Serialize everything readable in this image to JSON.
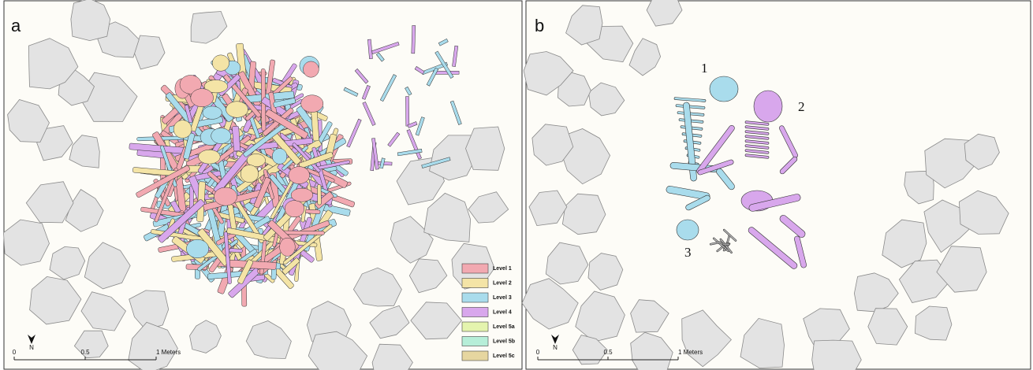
{
  "panels": [
    {
      "label": "a",
      "legend": [
        {
          "name": "Level 1",
          "color": "#f2a9b1"
        },
        {
          "name": "Level 2",
          "color": "#f4e4a6"
        },
        {
          "name": "Level 3",
          "color": "#a9dcec"
        },
        {
          "name": "Level 4",
          "color": "#d8a7ec"
        },
        {
          "name": "Level 5a",
          "color": "#e4f4ae"
        },
        {
          "name": "Level 5b",
          "color": "#b6eed8"
        },
        {
          "name": "Level 5c",
          "color": "#e6d6a0"
        }
      ],
      "scale": {
        "ticks": [
          "0",
          "0.5",
          "1 Meters"
        ],
        "north": "N"
      }
    },
    {
      "label": "b",
      "annotations": [
        "1",
        "2",
        "3"
      ],
      "scale": {
        "ticks": [
          "0",
          "0.5",
          "1 Meters"
        ],
        "north": "N"
      }
    }
  ]
}
